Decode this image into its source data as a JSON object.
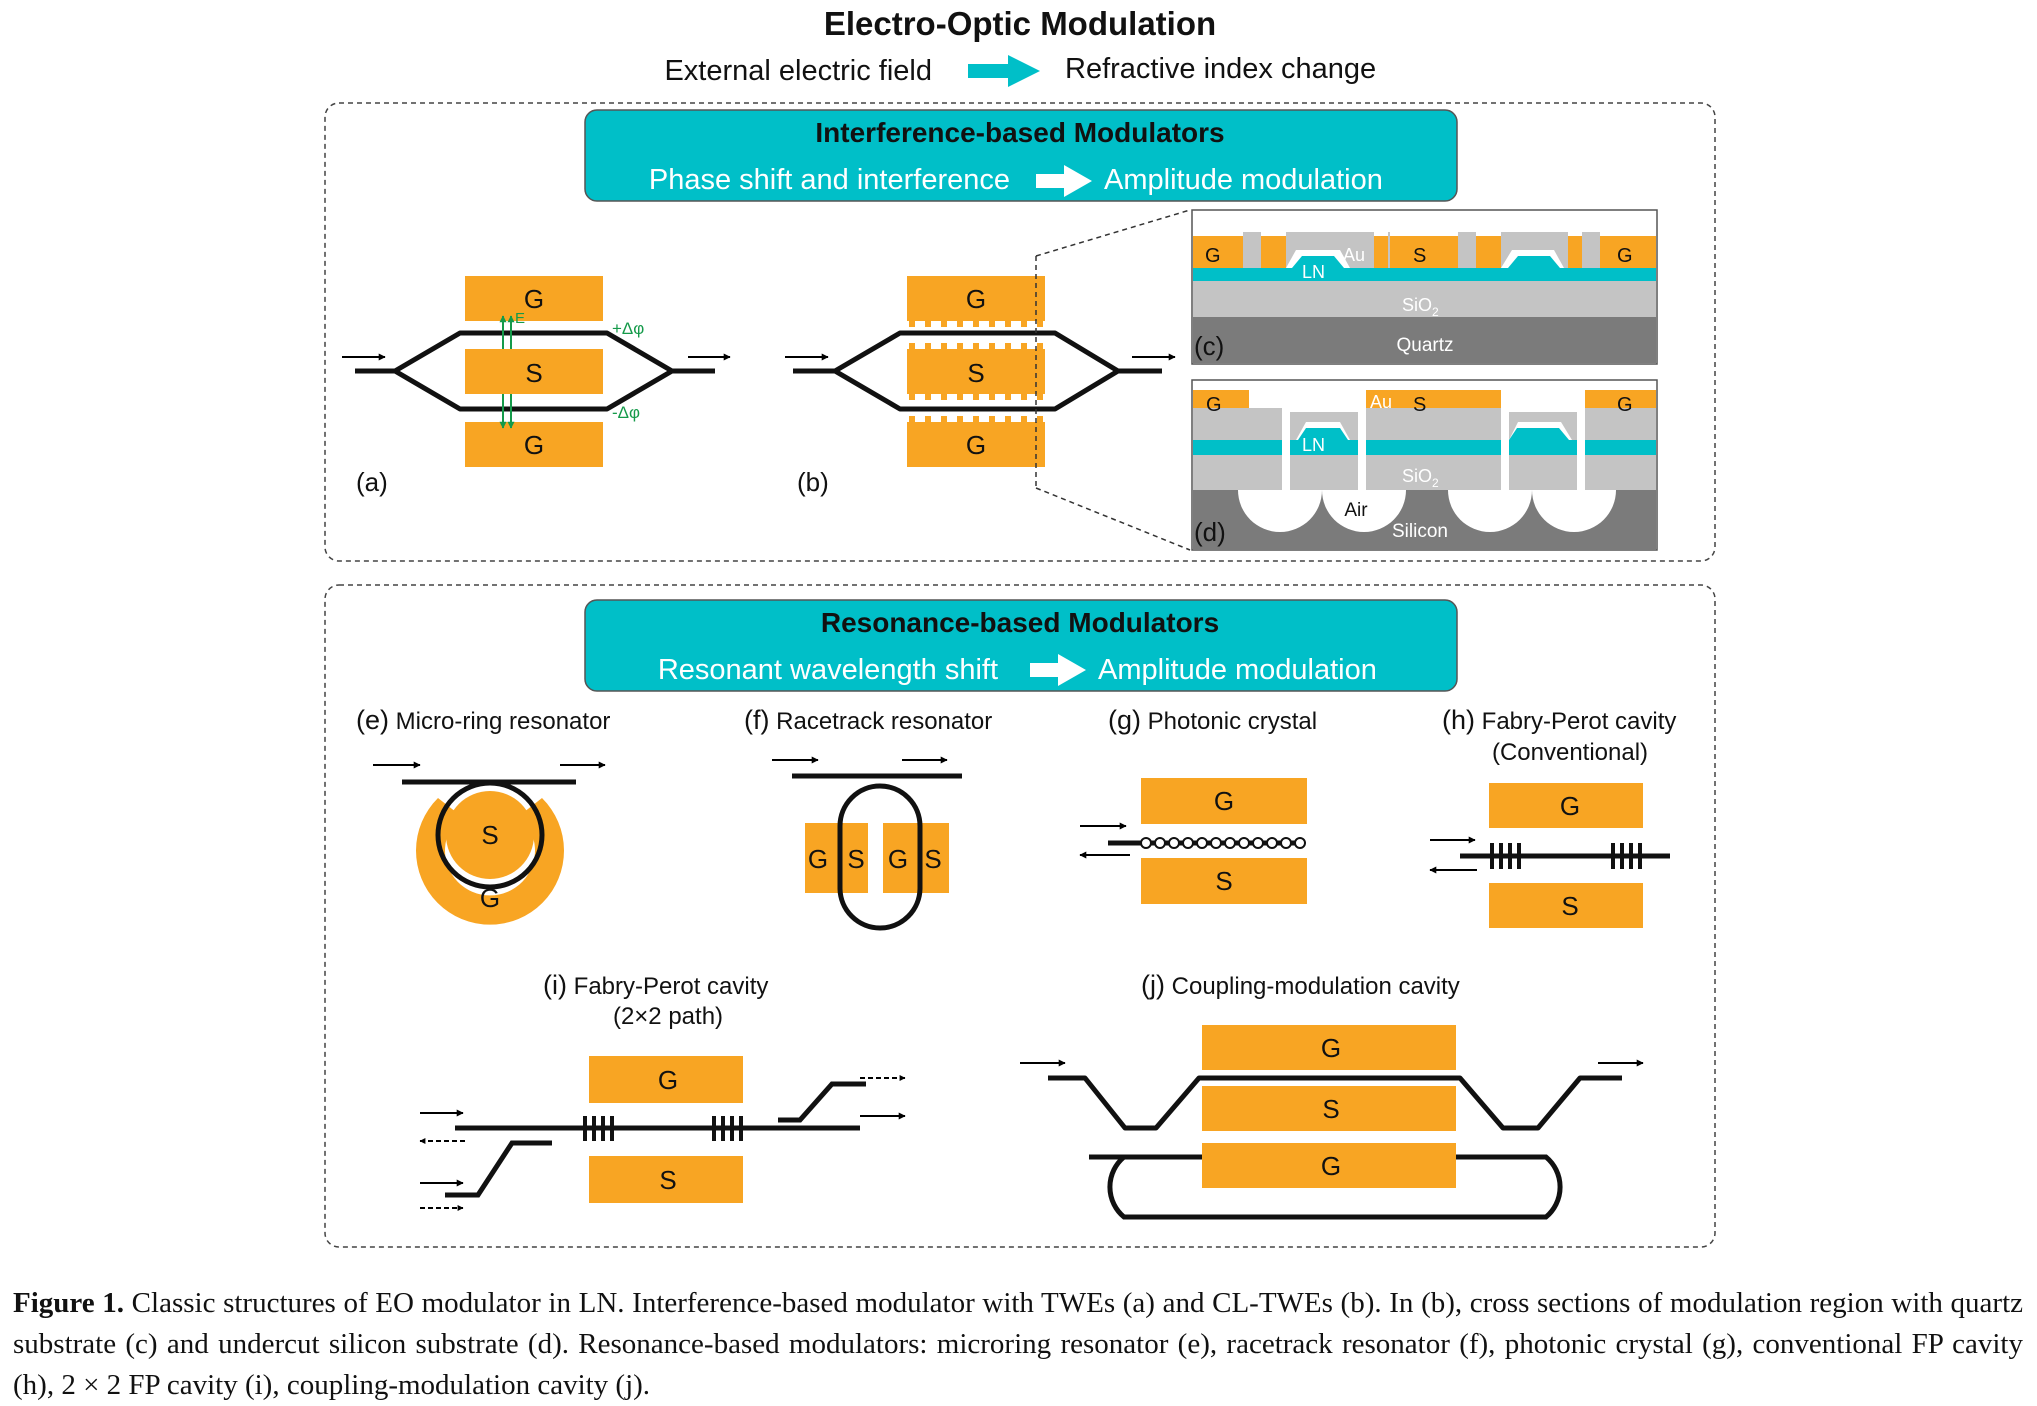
{
  "colors": {
    "electrode": "#f8a523",
    "teal": "#00bfc8",
    "gray": "#c4c4c4",
    "darkgray": "#7b7b7b",
    "green": "#159a4a"
  },
  "header": {
    "title": "Electro-Optic Modulation",
    "left": "External electric field",
    "right": "Refractive index change"
  },
  "interference": {
    "title": "Interference-based Modulators",
    "left": "Phase shift and interference",
    "right": "Amplitude modulation"
  },
  "panel_a": {
    "label": "(a)",
    "g": "G",
    "s": "S",
    "e": "E",
    "plus": "+Δφ",
    "minus": "-Δφ"
  },
  "panel_b": {
    "label": "(b)",
    "g": "G",
    "s": "S"
  },
  "panel_c": {
    "label": "(c)",
    "g": "G",
    "s": "S",
    "au": "Au",
    "ln": "LN",
    "sio2": "SiO",
    "sub": "2",
    "quartz": "Quartz"
  },
  "panel_d": {
    "label": "(d)",
    "g": "G",
    "s": "S",
    "au": "Au",
    "ln": "LN",
    "sio2": "SiO",
    "sub": "2",
    "air": "Air",
    "silicon": "Silicon"
  },
  "resonance": {
    "title": "Resonance-based Modulators",
    "left": "Resonant wavelength shift",
    "right": "Amplitude modulation"
  },
  "panel_e": {
    "label": "(e)",
    "title": "Micro-ring resonator",
    "s": "S",
    "g": "G"
  },
  "panel_f": {
    "label": "(f)",
    "title": "Racetrack resonator",
    "g": "G",
    "s": "S"
  },
  "panel_g": {
    "label": "(g)",
    "title": "Photonic crystal",
    "g": "G",
    "s": "S"
  },
  "panel_h": {
    "label": "(h)",
    "title": "Fabry-Perot cavity",
    "title2": "(Conventional)",
    "g": "G",
    "s": "S"
  },
  "panel_i": {
    "label": "(i)",
    "title": "Fabry-Perot cavity",
    "title2": "(2×2 path)",
    "g": "G",
    "s": "S"
  },
  "panel_j": {
    "label": "(j)",
    "title": "Coupling-modulation cavity",
    "g": "G",
    "s": "S"
  },
  "caption": {
    "figure": "Figure 1.",
    "text": "Classic structures of EO modulator in LN. Interference-based modulator with TWEs (a) and CL-TWEs (b). In (b), cross sections of modulation region with quartz substrate (c) and undercut silicon substrate (d). Resonance-based modulators: microring resonator (e), racetrack resonator (f), photonic crystal (g), conventional FP cavity (h), 2 × 2 FP cavity (i), coupling-modulation cavity (j)."
  }
}
